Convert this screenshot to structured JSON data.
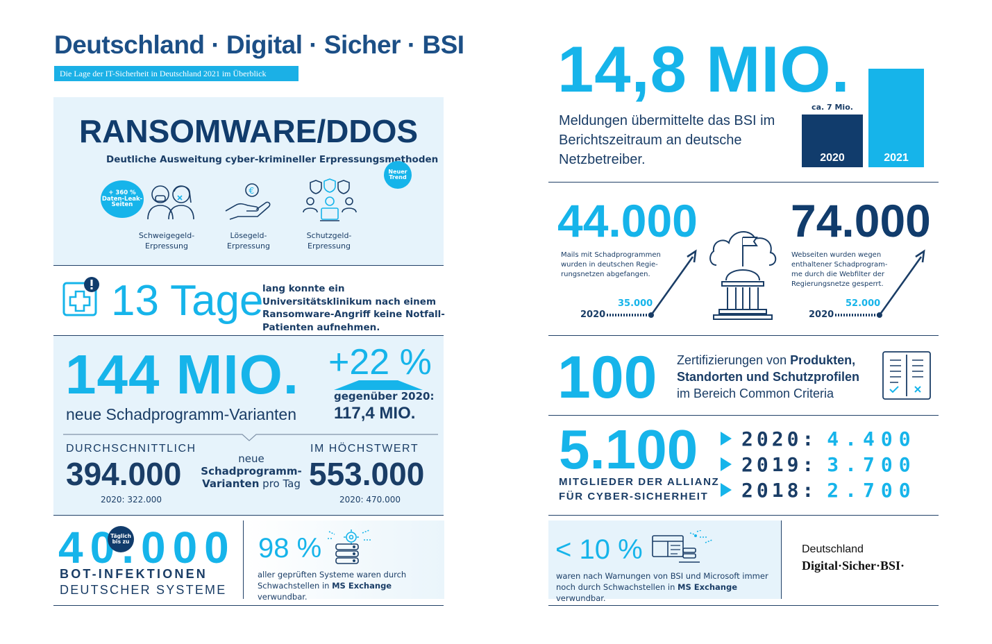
{
  "header": {
    "title": "Deutschland · Digital · Sicher · BSI",
    "subtitle": "Die Lage der IT-Sicherheit in Deutschland 2021 im Überblick"
  },
  "ransomware": {
    "title": "RANSOMWARE/DDOS",
    "subtitle": "Deutliche Ausweitung cyber-krimineller Erpressungsmethoden",
    "trend_badge": [
      "Neuer",
      "Trend"
    ],
    "leak_badge": [
      "+ 360 %",
      "Daten-Leak-",
      "Seiten"
    ],
    "methods": [
      {
        "line1": "Schweigegeld-",
        "line2": "Erpressung",
        "icon": "people-mask-icon"
      },
      {
        "line1": "Lösegeld-",
        "line2": "Erpressung",
        "icon": "hand-euro-icon"
      },
      {
        "line1": "Schutzgeld-",
        "line2": "Erpressung",
        "icon": "team-shield-icon"
      }
    ]
  },
  "hospital": {
    "value": "13 Tage",
    "text": "lang konnte ein Universitätsklinikum nach einem Ransomware-Angriff keine Notfall-Patienten aufnehmen.",
    "icon": "medical-alert-icon"
  },
  "malware": {
    "value": "144 MIO.",
    "caption": "neue Schadprogramm-Varianten",
    "increase": "+22 %",
    "compare_label": "gegenüber 2020:",
    "compare_value": "117,4 MIO.",
    "avg_label": "DURCHSCHNITTLICH",
    "avg_value": "394.000",
    "avg_prev": "2020: 322.000",
    "mid_line1": "neue",
    "mid_line2": "Schadprogramm-",
    "mid_line3a": "Varianten",
    "mid_line3b": " pro Tag",
    "max_label": "IM HÖCHSTWERT",
    "max_value": "553.000",
    "max_prev": "2020: 470.000"
  },
  "bots": {
    "value": "40.000",
    "badge": [
      "Täglich",
      "bis zu"
    ],
    "line1": "BOT-INFEKTIONEN",
    "line2": "DEUTSCHER SYSTEME"
  },
  "exchange_all": {
    "value": "98 %",
    "text_a": "aller geprüften Systeme waren durch Schwachstellen in ",
    "text_bold": "MS Exchange",
    "text_b": " verwundbar.",
    "icon": "server-gear-icon"
  },
  "reports": {
    "value": "14,8 MIO.",
    "text": "Meldungen übermittelte das BSI im Berichtszeitraum an deutsche Netzbetreiber.",
    "bar_note": "ca. 7 Mio.",
    "bars": [
      {
        "year": "2020",
        "value": 7.0,
        "color": "#113c6c"
      },
      {
        "year": "2021",
        "value": 14.8,
        "color": "#16b4ea"
      }
    ]
  },
  "mails": {
    "value": "44.000",
    "text": [
      "Mails mit Schadprogrammen",
      "wurden in deutschen Regie-",
      "rungsnetzen abgefangen."
    ],
    "prev_year": "2020",
    "prev_value": "35.000"
  },
  "websites": {
    "value": "74.000",
    "text": [
      "Webseiten wurden wegen",
      "enthaltener Schadprogram-",
      "me durch die Webfilter der",
      "Regierungsnetze gesperrt."
    ],
    "prev_year": "2020",
    "prev_value": "52.000",
    "center_icon": "government-cloud-icon"
  },
  "certifications": {
    "value": "100",
    "text_a": "Zertifizierungen von ",
    "text_bold1": "Produkten,",
    "text_bold2": "Standorten und Schutzprofilen",
    "text_b": "im Bereich Common Criteria",
    "icon": "checklist-document-icon"
  },
  "alliance": {
    "value": "5.100",
    "line1": "MITGLIEDER DER ALLIANZ",
    "line2": "FÜR CYBER-SICHERHEIT",
    "history": [
      {
        "year": "2020:",
        "value": "4.400"
      },
      {
        "year": "2019:",
        "value": "3.700"
      },
      {
        "year": "2018:",
        "value": "2.700"
      }
    ]
  },
  "exchange_warn": {
    "value": "< 10 %",
    "text_a": "waren nach Warnungen von BSI und Microsoft immer noch durch Schwachstellen in ",
    "text_bold": "MS Exchange",
    "text_b": " verwundbar.",
    "icon": "window-network-icon"
  },
  "logo": {
    "line1": "Deutschland",
    "line2": "Digital·Sicher·BSI·"
  },
  "colors": {
    "navy": "#113c6c",
    "cyan": "#16b4ea",
    "panel": "#e6f3fb"
  }
}
